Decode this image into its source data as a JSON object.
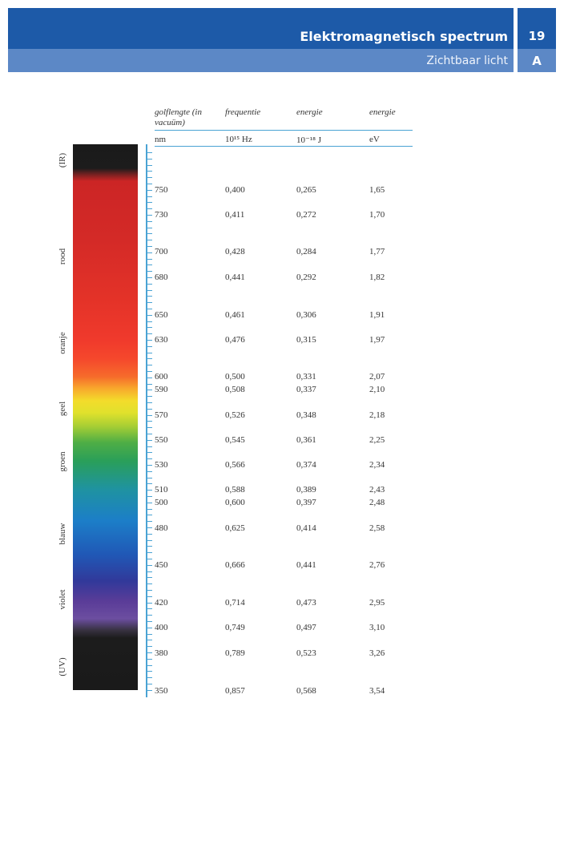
{
  "header": {
    "title": "Elektromagnetisch spectrum",
    "subtitle": "Zichtbaar licht",
    "page_number": "19",
    "chapter": "A",
    "colors": {
      "dark_blue": "#1d5aa8",
      "light_blue": "#5c88c6",
      "accent_line": "#4aa3d4"
    }
  },
  "table": {
    "columns": [
      {
        "label": "golflengte (in vacuüm)",
        "unit": "nm"
      },
      {
        "label": "frequentie",
        "unit": "10¹⁵ Hz"
      },
      {
        "label": "energie",
        "unit": "10⁻¹⁸ J"
      },
      {
        "label": "energie",
        "unit": "eV"
      }
    ],
    "rows": [
      {
        "nm": "750",
        "freq": "0,400",
        "joule": "0,265",
        "ev": "1,65"
      },
      {
        "nm": "730",
        "freq": "0,411",
        "joule": "0,272",
        "ev": "1,70"
      },
      {
        "nm": "700",
        "freq": "0,428",
        "joule": "0,284",
        "ev": "1,77"
      },
      {
        "nm": "680",
        "freq": "0,441",
        "joule": "0,292",
        "ev": "1,82"
      },
      {
        "nm": "650",
        "freq": "0,461",
        "joule": "0,306",
        "ev": "1,91"
      },
      {
        "nm": "630",
        "freq": "0,476",
        "joule": "0,315",
        "ev": "1,97"
      },
      {
        "nm": "600",
        "freq": "0,500",
        "joule": "0,331",
        "ev": "2,07"
      },
      {
        "nm": "590",
        "freq": "0,508",
        "joule": "0,337",
        "ev": "2,10"
      },
      {
        "nm": "570",
        "freq": "0,526",
        "joule": "0,348",
        "ev": "2,18"
      },
      {
        "nm": "550",
        "freq": "0,545",
        "joule": "0,361",
        "ev": "2,25"
      },
      {
        "nm": "530",
        "freq": "0,566",
        "joule": "0,374",
        "ev": "2,34"
      },
      {
        "nm": "510",
        "freq": "0,588",
        "joule": "0,389",
        "ev": "2,43"
      },
      {
        "nm": "500",
        "freq": "0,600",
        "joule": "0,397",
        "ev": "2,48"
      },
      {
        "nm": "480",
        "freq": "0,625",
        "joule": "0,414",
        "ev": "2,58"
      },
      {
        "nm": "450",
        "freq": "0,666",
        "joule": "0,441",
        "ev": "2,76"
      },
      {
        "nm": "420",
        "freq": "0,714",
        "joule": "0,473",
        "ev": "2,95"
      },
      {
        "nm": "400",
        "freq": "0,749",
        "joule": "0,497",
        "ev": "3,10"
      },
      {
        "nm": "380",
        "freq": "0,789",
        "joule": "0,523",
        "ev": "3,26"
      },
      {
        "nm": "350",
        "freq": "0,857",
        "joule": "0,568",
        "ev": "3,54"
      }
    ]
  },
  "bands": [
    "(IR)",
    "rood",
    "oranje",
    "geel",
    "groen",
    "blauw",
    "violet",
    "(UV)"
  ]
}
